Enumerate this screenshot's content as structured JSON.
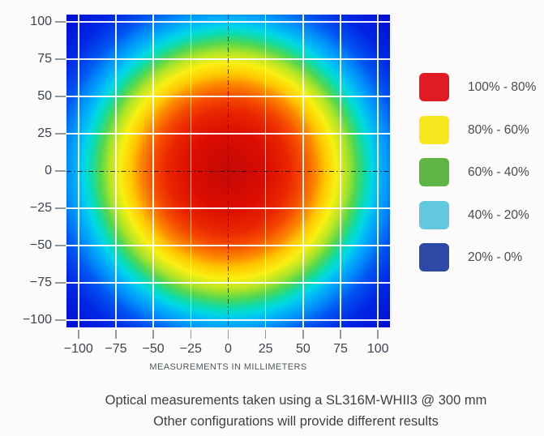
{
  "colors": {
    "background": "#fcfbf9",
    "gridline": "#ffffff",
    "crosshair": "#1a1a1a",
    "tick": "#8e99a3",
    "tick_label": "#3a4550",
    "axis_title": "#4d5860",
    "legend_label": "#454c52",
    "caption_text": "#3b4146"
  },
  "chart_data": {
    "type": "heatmap",
    "title": "",
    "xlabel": "MEASUREMENTS IN MILLIMETERS",
    "ylabel": "",
    "grid": true,
    "legend_position": "right",
    "x_range": [
      -108,
      108
    ],
    "y_range": [
      -105,
      105
    ],
    "x_ticks": [
      {
        "value": -100,
        "label": "−100"
      },
      {
        "value": -75,
        "label": "−75"
      },
      {
        "value": -50,
        "label": "−50"
      },
      {
        "value": -25,
        "label": "−25"
      },
      {
        "value": 0,
        "label": "0"
      },
      {
        "value": 25,
        "label": "25"
      },
      {
        "value": 50,
        "label": "50"
      },
      {
        "value": 75,
        "label": "75"
      },
      {
        "value": 100,
        "label": "100"
      }
    ],
    "y_ticks": [
      {
        "value": 100,
        "label": "100"
      },
      {
        "value": 75,
        "label": "75"
      },
      {
        "value": 50,
        "label": "50"
      },
      {
        "value": 25,
        "label": "25"
      },
      {
        "value": 0,
        "label": "0"
      },
      {
        "value": -25,
        "label": "−25"
      },
      {
        "value": -50,
        "label": "−50"
      },
      {
        "value": -75,
        "label": "−75"
      },
      {
        "value": -100,
        "label": "−100"
      }
    ],
    "grid_values": [
      -100,
      -75,
      -50,
      -25,
      25,
      50,
      75,
      100
    ],
    "crosshair_at": {
      "x": 0,
      "y": 0
    },
    "peak": {
      "x_mm": 0,
      "y_mm": 0,
      "intensity_pct": 100
    },
    "intensity_bands": [
      {
        "label": "100% - 80%",
        "color": "#e01b24",
        "approx_outer_radius_mm": 60
      },
      {
        "label": "80% - 60%",
        "color": "#f6e81f",
        "approx_outer_radius_mm": 78
      },
      {
        "label": "60% - 40%",
        "color": "#5cb544",
        "approx_outer_radius_mm": 90
      },
      {
        "label": "40% - 20%",
        "color": "#62c8e0",
        "approx_outer_radius_mm": 102
      },
      {
        "label": "20% - 0%",
        "color": "#2c4aa5",
        "approx_outer_radius_mm": 150
      }
    ],
    "colormap_stops": [
      {
        "pos": 0.0,
        "color": "#c50909"
      },
      {
        "pos": 0.09,
        "color": "#d00a04"
      },
      {
        "pos": 0.17,
        "color": "#dc0d00"
      },
      {
        "pos": 0.27,
        "color": "#ea2600"
      },
      {
        "pos": 0.33,
        "color": "#f54b00"
      },
      {
        "pos": 0.39,
        "color": "#fc8a00"
      },
      {
        "pos": 0.43,
        "color": "#ffc600"
      },
      {
        "pos": 0.48,
        "color": "#f9f011"
      },
      {
        "pos": 0.53,
        "color": "#aee428"
      },
      {
        "pos": 0.57,
        "color": "#50d750"
      },
      {
        "pos": 0.61,
        "color": "#0cdcae"
      },
      {
        "pos": 0.64,
        "color": "#00d7e6"
      },
      {
        "pos": 0.675,
        "color": "#00b3f8"
      },
      {
        "pos": 0.715,
        "color": "#008ffa"
      },
      {
        "pos": 0.77,
        "color": "#0056f2"
      },
      {
        "pos": 0.855,
        "color": "#0028e6"
      },
      {
        "pos": 1.0,
        "color": "#000bd0"
      }
    ],
    "legend": [
      {
        "label": "100% - 80%",
        "color": "#e01b24"
      },
      {
        "label": "80% - 60%",
        "color": "#f6e81f"
      },
      {
        "label": "60% - 40%",
        "color": "#5cb544"
      },
      {
        "label": "40% - 20%",
        "color": "#62c8e0"
      },
      {
        "label": "20% - 0%",
        "color": "#2c4aa5"
      }
    ]
  },
  "caption": {
    "line1": "Optical measurements taken using a SL316M-WHII3 @ 300 mm",
    "line2": "Other configurations will provide different results"
  }
}
